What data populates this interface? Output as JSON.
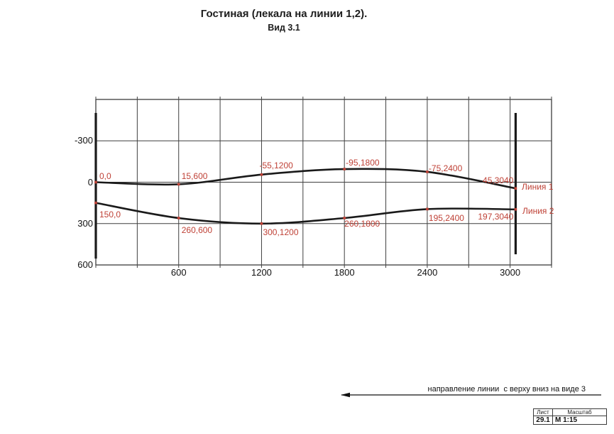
{
  "page": {
    "title": "Гостиная (лекала на линии 1,2).",
    "subtitle": "Вид 3.1"
  },
  "chart_data": {
    "type": "line",
    "title": "Гостиная (лекала на линии 1,2).",
    "subtitle": "Вид 3.1",
    "x": [
      0,
      600,
      1200,
      1800,
      2400,
      3040
    ],
    "series": [
      {
        "name": "Линия 1",
        "values": [
          0,
          15,
          -55,
          -95,
          -75,
          45
        ],
        "point_labels": [
          "0,0",
          "15,600",
          "-55,1200",
          "-95,1800",
          "-75,2400",
          "45,3040"
        ]
      },
      {
        "name": "Линия 2",
        "values": [
          150,
          260,
          300,
          260,
          195,
          197
        ],
        "point_labels": [
          "150,0",
          "260,600",
          "300,1200",
          "260,1800",
          "195,2400",
          "197,3040"
        ]
      }
    ],
    "x_axis": {
      "min": 0,
      "max": 3300,
      "grid_step": 300,
      "ticks": [
        "600",
        "1200",
        "1800",
        "2400",
        "3000"
      ]
    },
    "y_axis": {
      "min": -600,
      "max": 600,
      "grid_step": 300,
      "inverted": true,
      "ticks": [
        "-300",
        "0",
        "300",
        "600"
      ]
    },
    "grid": true,
    "legend_position": "right-inline",
    "end_marker_x": [
      0,
      3040
    ],
    "colors": {
      "curve": "#1a1a1a",
      "annotation": "#bf4136",
      "grid": "#3f3f3f",
      "border": "#4a4a4a"
    }
  },
  "footer": {
    "direction_note": "направление линии  с верху вниз на виде 3"
  },
  "title_block": {
    "headers": [
      "Лист",
      "Масштаб"
    ],
    "values": [
      "29.1",
      "М 1:15"
    ]
  }
}
